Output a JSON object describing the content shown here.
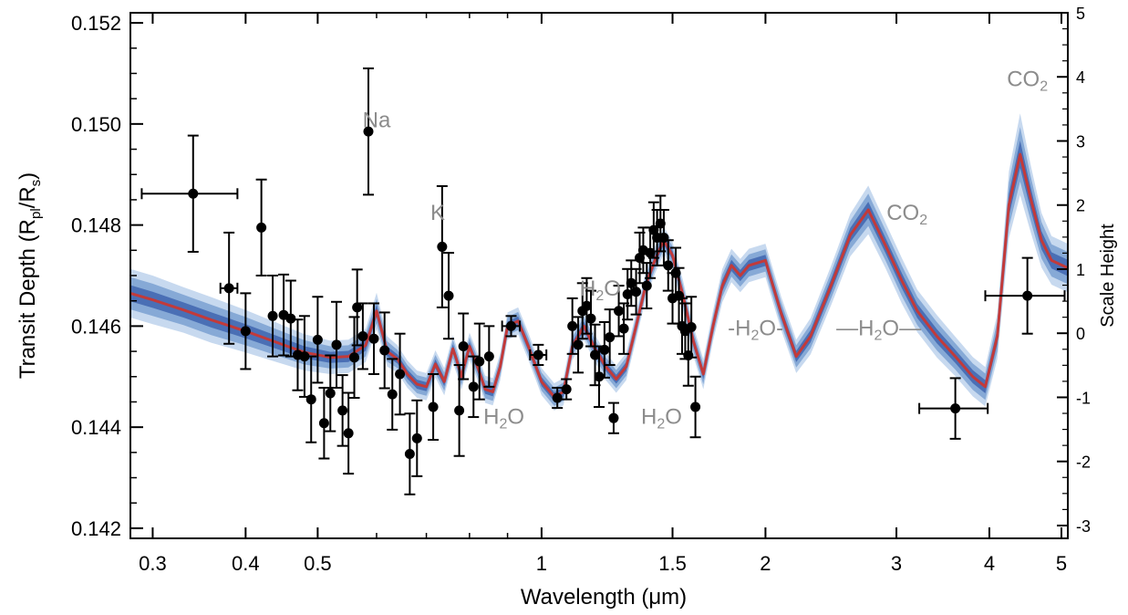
{
  "chart_data": {
    "type": "scatter",
    "xscale": "log",
    "xlim": [
      0.28,
      5.1
    ],
    "ylim": [
      0.1418,
      0.1522
    ],
    "y2lim": [
      -3.2,
      5.0
    ],
    "x_ticks": [
      0.3,
      0.4,
      0.5,
      1,
      1.5,
      2,
      3,
      4,
      5
    ],
    "x_tick_labels": [
      "0.3",
      "0.4",
      "0.5",
      "1",
      "1.5",
      "2",
      "3",
      "4",
      "5"
    ],
    "y_ticks": [
      0.142,
      0.144,
      0.146,
      0.148,
      0.15,
      0.152
    ],
    "y_tick_labels": [
      "0.142",
      "0.144",
      "0.146",
      "0.148",
      "0.150",
      "0.152"
    ],
    "y2_ticks": [
      -3,
      -2,
      -1,
      0,
      1,
      2,
      3,
      4,
      5
    ],
    "y2_tick_labels": [
      "-3",
      "-2",
      "-1",
      "0",
      "1",
      "2",
      "3",
      "4",
      "5"
    ],
    "xlabel": "Wavelength (μm)",
    "ylabel": "Transit Depth (R",
    "ylabel_sub1": "pl",
    "ylabel_mid": "/R",
    "ylabel_sub2": "s",
    "ylabel_end": ")",
    "y2label": "Scale Height",
    "grid": false,
    "colors": {
      "model_line": "#c23a3a",
      "band_outer": "#c7d9ef",
      "band_mid": "#86a9d6",
      "band_inner": "#4a6fb5",
      "points": "#000000",
      "annotation": "#8c8c8c"
    },
    "model": {
      "x": [
        0.28,
        0.3,
        0.33,
        0.36,
        0.4,
        0.44,
        0.48,
        0.52,
        0.55,
        0.58,
        0.6,
        0.62,
        0.64,
        0.66,
        0.68,
        0.7,
        0.72,
        0.74,
        0.76,
        0.77,
        0.78,
        0.8,
        0.82,
        0.84,
        0.86,
        0.88,
        0.9,
        0.93,
        0.96,
        1.0,
        1.04,
        1.07,
        1.1,
        1.14,
        1.18,
        1.22,
        1.26,
        1.3,
        1.34,
        1.38,
        1.42,
        1.46,
        1.5,
        1.55,
        1.6,
        1.65,
        1.7,
        1.75,
        1.8,
        1.85,
        1.9,
        2.0,
        2.1,
        2.2,
        2.3,
        2.45,
        2.6,
        2.75,
        2.9,
        3.05,
        3.2,
        3.4,
        3.6,
        3.8,
        3.95,
        4.1,
        4.25,
        4.4,
        4.55,
        4.7,
        4.85,
        5.1
      ],
      "y": [
        0.14665,
        0.14652,
        0.14632,
        0.14612,
        0.1459,
        0.14568,
        0.14548,
        0.14538,
        0.1454,
        0.14562,
        0.1463,
        0.1455,
        0.14535,
        0.14505,
        0.14485,
        0.1448,
        0.14525,
        0.1449,
        0.14555,
        0.1453,
        0.145,
        0.1456,
        0.1452,
        0.14475,
        0.1447,
        0.1452,
        0.146,
        0.1461,
        0.1456,
        0.1449,
        0.1446,
        0.1447,
        0.1456,
        0.146,
        0.14555,
        0.1452,
        0.14495,
        0.1452,
        0.146,
        0.1468,
        0.1473,
        0.1477,
        0.1474,
        0.1466,
        0.1457,
        0.14505,
        0.146,
        0.1468,
        0.1472,
        0.147,
        0.1472,
        0.1473,
        0.14625,
        0.1454,
        0.1458,
        0.1468,
        0.1478,
        0.1483,
        0.1476,
        0.1469,
        0.1463,
        0.1458,
        0.1454,
        0.145,
        0.1448,
        0.1458,
        0.1484,
        0.1494,
        0.1485,
        0.1477,
        0.1473,
        0.14715
      ],
      "sigma": [
        0.00016,
        0.00016,
        0.00015,
        0.00015,
        0.00014,
        0.00013,
        0.00012,
        0.00011,
        0.00011,
        0.00011,
        0.00012,
        0.0001,
        9e-05,
        9e-05,
        9e-05,
        9e-05,
        9e-05,
        9e-05,
        9e-05,
        9e-05,
        9e-05,
        9e-05,
        9e-05,
        9e-05,
        9e-05,
        9e-05,
        9e-05,
        9e-05,
        9e-05,
        9e-05,
        9e-05,
        9e-05,
        9e-05,
        9e-05,
        9e-05,
        9e-05,
        9e-05,
        9e-05,
        9e-05,
        9e-05,
        9e-05,
        9e-05,
        9e-05,
        0.0001,
        0.0001,
        0.0001,
        0.0001,
        0.00011,
        0.00011,
        0.00011,
        0.00011,
        0.00011,
        0.00011,
        0.00011,
        0.00012,
        0.00013,
        0.00014,
        0.00016,
        0.00015,
        0.00015,
        0.00014,
        0.00014,
        0.00013,
        0.00013,
        0.00013,
        0.00015,
        0.00022,
        0.00027,
        0.00022,
        0.00018,
        0.00016,
        0.00016
      ]
    },
    "points": [
      {
        "x": 0.34,
        "y": 0.14862,
        "yerr": 0.00115,
        "xlo": 0.29,
        "xhi": 0.39
      },
      {
        "x": 0.38,
        "y": 0.14675,
        "yerr": 0.0011,
        "xlo": 0.37,
        "xhi": 0.39
      },
      {
        "x": 0.4,
        "y": 0.1459,
        "yerr": 0.00075
      },
      {
        "x": 0.42,
        "y": 0.14795,
        "yerr": 0.00095
      },
      {
        "x": 0.435,
        "y": 0.1462,
        "yerr": 0.0008
      },
      {
        "x": 0.45,
        "y": 0.14622,
        "yerr": 0.0008
      },
      {
        "x": 0.46,
        "y": 0.14615,
        "yerr": 0.00075
      },
      {
        "x": 0.47,
        "y": 0.14543,
        "yerr": 0.0007
      },
      {
        "x": 0.48,
        "y": 0.1454,
        "yerr": 0.0008
      },
      {
        "x": 0.49,
        "y": 0.14455,
        "yerr": 0.00085
      },
      {
        "x": 0.5,
        "y": 0.14573,
        "yerr": 0.00085
      },
      {
        "x": 0.51,
        "y": 0.14408,
        "yerr": 0.0007
      },
      {
        "x": 0.52,
        "y": 0.14467,
        "yerr": 0.00075
      },
      {
        "x": 0.53,
        "y": 0.14563,
        "yerr": 0.00085
      },
      {
        "x": 0.54,
        "y": 0.14433,
        "yerr": 0.0007
      },
      {
        "x": 0.55,
        "y": 0.14388,
        "yerr": 0.0008
      },
      {
        "x": 0.56,
        "y": 0.14538,
        "yerr": 0.0008
      },
      {
        "x": 0.565,
        "y": 0.14637,
        "yerr": 0.00075
      },
      {
        "x": 0.575,
        "y": 0.1458,
        "yerr": 0.00065
      },
      {
        "x": 0.585,
        "y": 0.14985,
        "yerr": 0.00125
      },
      {
        "x": 0.595,
        "y": 0.14575,
        "yerr": 0.0007
      },
      {
        "x": 0.615,
        "y": 0.14552,
        "yerr": 0.00075
      },
      {
        "x": 0.63,
        "y": 0.14465,
        "yerr": 0.0007
      },
      {
        "x": 0.645,
        "y": 0.14505,
        "yerr": 0.0008
      },
      {
        "x": 0.665,
        "y": 0.14347,
        "yerr": 0.0008
      },
      {
        "x": 0.68,
        "y": 0.14378,
        "yerr": 0.00075
      },
      {
        "x": 0.715,
        "y": 0.1444,
        "yerr": 0.00065
      },
      {
        "x": 0.735,
        "y": 0.14757,
        "yerr": 0.0012
      },
      {
        "x": 0.75,
        "y": 0.1466,
        "yerr": 0.00085
      },
      {
        "x": 0.775,
        "y": 0.14433,
        "yerr": 0.0009
      },
      {
        "x": 0.785,
        "y": 0.1456,
        "yerr": 0.00065
      },
      {
        "x": 0.81,
        "y": 0.1448,
        "yerr": 0.0006
      },
      {
        "x": 0.825,
        "y": 0.1453,
        "yerr": 0.00075
      },
      {
        "x": 0.85,
        "y": 0.1454,
        "yerr": 0.0006
      },
      {
        "x": 0.91,
        "y": 0.146,
        "yerr": 0.0002,
        "xlo": 0.885,
        "xhi": 0.935
      },
      {
        "x": 0.99,
        "y": 0.14543,
        "yerr": 0.0002,
        "xlo": 0.965,
        "xhi": 1.015
      },
      {
        "x": 1.05,
        "y": 0.14458,
        "yerr": 0.0002
      },
      {
        "x": 1.08,
        "y": 0.14475,
        "yerr": 0.0002
      },
      {
        "x": 1.1,
        "y": 0.146,
        "yerr": 0.00055
      },
      {
        "x": 1.12,
        "y": 0.14563,
        "yerr": 0.00055
      },
      {
        "x": 1.135,
        "y": 0.1463,
        "yerr": 0.00055
      },
      {
        "x": 1.15,
        "y": 0.1464,
        "yerr": 0.00055
      },
      {
        "x": 1.165,
        "y": 0.14615,
        "yerr": 0.00055
      },
      {
        "x": 1.18,
        "y": 0.14543,
        "yerr": 0.0006
      },
      {
        "x": 1.195,
        "y": 0.145,
        "yerr": 0.0006
      },
      {
        "x": 1.215,
        "y": 0.14553,
        "yerr": 0.00055
      },
      {
        "x": 1.235,
        "y": 0.14578,
        "yerr": 0.00055
      },
      {
        "x": 1.25,
        "y": 0.14418,
        "yerr": 0.0003
      },
      {
        "x": 1.27,
        "y": 0.1463,
        "yerr": 0.0005
      },
      {
        "x": 1.29,
        "y": 0.14595,
        "yerr": 0.0005
      },
      {
        "x": 1.305,
        "y": 0.14663,
        "yerr": 0.0005
      },
      {
        "x": 1.32,
        "y": 0.14685,
        "yerr": 0.00045
      },
      {
        "x": 1.34,
        "y": 0.14668,
        "yerr": 0.00045
      },
      {
        "x": 1.355,
        "y": 0.14735,
        "yerr": 0.0005
      },
      {
        "x": 1.37,
        "y": 0.1475,
        "yerr": 0.00045
      },
      {
        "x": 1.385,
        "y": 0.1468,
        "yerr": 0.00045
      },
      {
        "x": 1.4,
        "y": 0.14745,
        "yerr": 0.0005
      },
      {
        "x": 1.415,
        "y": 0.1479,
        "yerr": 0.00055
      },
      {
        "x": 1.43,
        "y": 0.14775,
        "yerr": 0.00055
      },
      {
        "x": 1.445,
        "y": 0.14803,
        "yerr": 0.00055
      },
      {
        "x": 1.46,
        "y": 0.14775,
        "yerr": 0.00055
      },
      {
        "x": 1.48,
        "y": 0.1472,
        "yerr": 0.0005
      },
      {
        "x": 1.5,
        "y": 0.14655,
        "yerr": 0.0005
      },
      {
        "x": 1.515,
        "y": 0.14705,
        "yerr": 0.0005
      },
      {
        "x": 1.53,
        "y": 0.1466,
        "yerr": 0.00055
      },
      {
        "x": 1.545,
        "y": 0.146,
        "yerr": 0.00055
      },
      {
        "x": 1.56,
        "y": 0.1459,
        "yerr": 0.00055
      },
      {
        "x": 1.575,
        "y": 0.14542,
        "yerr": 0.0006
      },
      {
        "x": 1.59,
        "y": 0.14598,
        "yerr": 0.0006
      },
      {
        "x": 1.61,
        "y": 0.1444,
        "yerr": 0.0006
      },
      {
        "x": 3.6,
        "y": 0.14437,
        "yerr": 0.0006,
        "xlo": 3.22,
        "xhi": 3.98
      },
      {
        "x": 4.5,
        "y": 0.1466,
        "yerr": 0.00075,
        "xlo": 3.95,
        "xhi": 5.05
      }
    ],
    "annotations": [
      {
        "text": "Na",
        "sub": "",
        "x": 0.6,
        "y": 0.14993
      },
      {
        "text": "K",
        "sub": "",
        "x": 0.725,
        "y": 0.1481
      },
      {
        "text": "H",
        "sub": "2",
        "tail": "O",
        "x": 1.2,
        "y": 0.1466
      },
      {
        "text": "H",
        "sub": "2",
        "tail": "O",
        "x": 0.89,
        "y": 0.14407
      },
      {
        "text": "H",
        "sub": "2",
        "tail": "O",
        "x": 1.45,
        "y": 0.14407
      },
      {
        "text": "-H",
        "sub": "2",
        "tail": "O-",
        "x": 1.94,
        "y": 0.14582
      },
      {
        "text": "—H",
        "sub": "2",
        "tail": "O—",
        "x": 2.84,
        "y": 0.14582
      },
      {
        "text": "CO",
        "sub": "2",
        "tail": "",
        "x": 3.1,
        "y": 0.1481
      },
      {
        "text": "CO",
        "sub": "2",
        "tail": "",
        "x": 4.5,
        "y": 0.15075
      }
    ]
  }
}
